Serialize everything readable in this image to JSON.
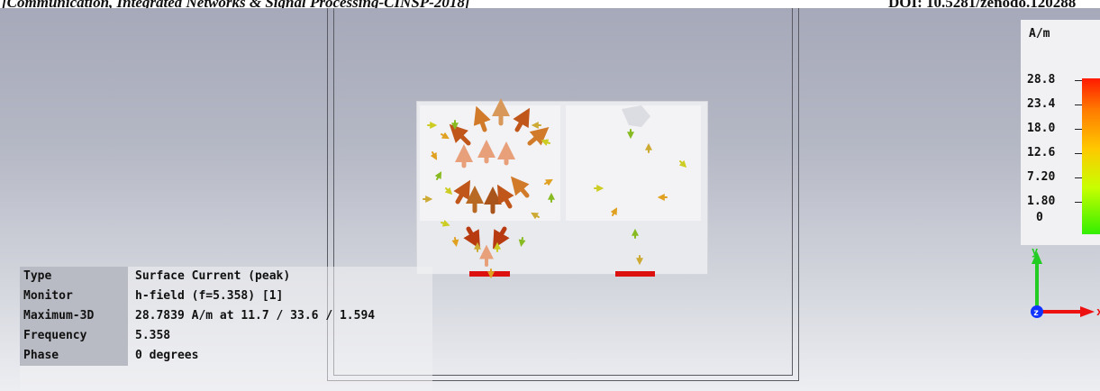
{
  "header": {
    "left_text": "[Communication, Integrated Networks & Signal Processing-CINSP-2018]",
    "right_text": "DOI: 10.5281/zenodo.120288"
  },
  "info_panel": {
    "rows": [
      {
        "key": "Type",
        "value": "Surface Current (peak)"
      },
      {
        "key": "Monitor",
        "value": "h-field (f=5.358) [1]"
      },
      {
        "key": "Maximum-3D",
        "value": "28.7839 A/m at 11.7 / 33.6 / 1.594"
      },
      {
        "key": "Frequency",
        "value": "5.358"
      },
      {
        "key": "Phase",
        "value": "0 degrees"
      }
    ]
  },
  "legend": {
    "unit": "A/m",
    "labels": [
      "28.8",
      "23.4",
      "18.0",
      "12.6",
      "7.20",
      "1.80",
      "0"
    ],
    "color_max": "#ff1a00",
    "color_mid": "#ffc800",
    "color_min": "#33ee00"
  },
  "axes": {
    "y_label": "y",
    "x_label": "x",
    "z_label": "z",
    "y_color": "#22cc22",
    "x_color": "#ee1111",
    "z_color": "#1133ff"
  }
}
